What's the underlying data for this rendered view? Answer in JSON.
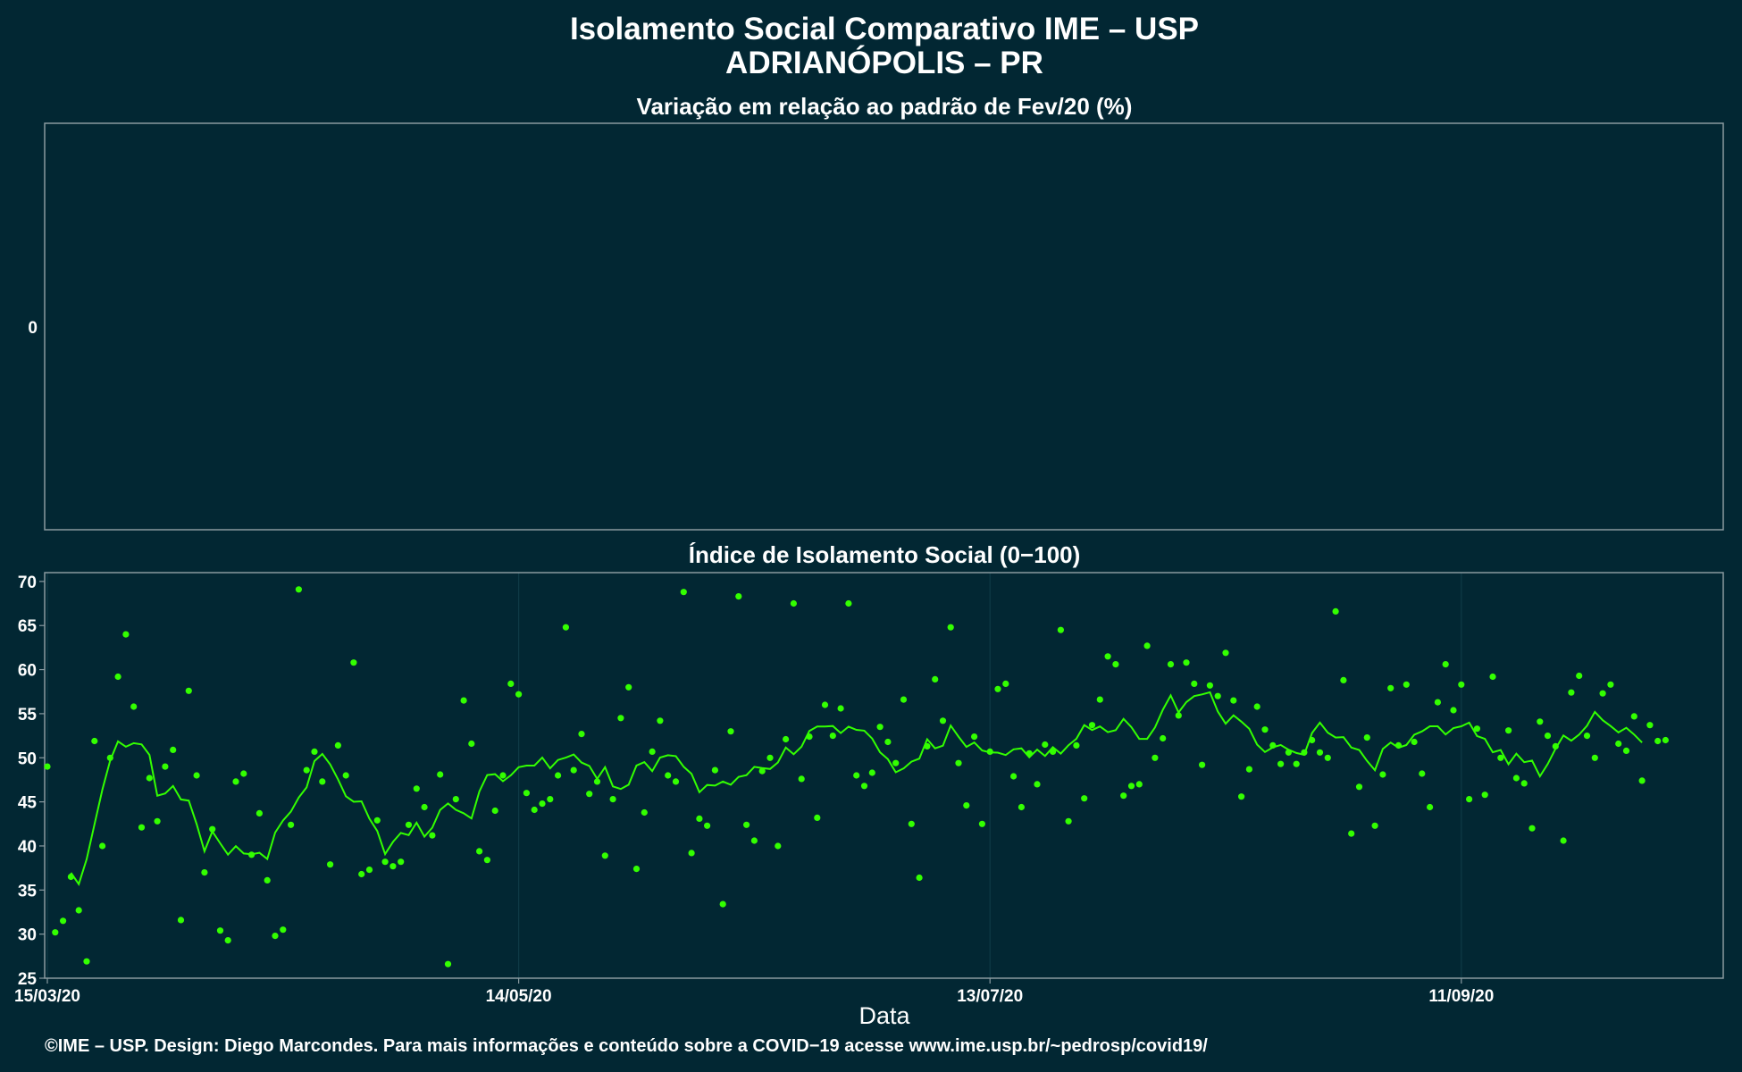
{
  "title": "Isolamento Social Comparativo IME – USP",
  "subtitle": "ADRIANÓPOLIS – PR",
  "footer": "©IME – USP. Design: Diego Marcondes. Para mais informações e conteúdo sobre a COVID−19 acesse www.ime.usp.br/~pedrosp/covid19/",
  "colors": {
    "background": "#022733",
    "series": "#33ff00",
    "panel_border": "#8a9aa0"
  },
  "chart_data": [
    {
      "type": "line",
      "title": "Variação em relação ao padrão de Fev/20 (%)",
      "ytick_labels": [
        "0"
      ],
      "series": []
    },
    {
      "type": "scatter",
      "title": "Índice de Isolamento Social (0−100)",
      "xlabel": "Data",
      "x_start": "15/03/20",
      "xlim": [
        "15/03/20",
        "14/10/20"
      ],
      "ylim": [
        25,
        71
      ],
      "yticks": [
        25,
        30,
        35,
        40,
        45,
        50,
        55,
        60,
        65,
        70
      ],
      "xtick_labels": [
        "15/03/20",
        "14/05/20",
        "13/07/20",
        "11/09/20"
      ],
      "grid": true,
      "values": [
        49.0,
        30.2,
        31.5,
        36.5,
        32.7,
        26.9,
        51.9,
        40.0,
        50.0,
        59.2,
        64.0,
        55.8,
        42.1,
        47.7,
        42.8,
        49.0,
        50.9,
        31.6,
        57.6,
        48.0,
        37.0,
        41.9,
        30.4,
        29.3,
        47.3,
        48.2,
        39.0,
        43.7,
        36.1,
        29.8,
        30.5,
        42.4,
        69.1,
        48.6,
        50.7,
        47.3,
        37.9,
        51.4,
        48.0,
        60.8,
        36.8,
        37.3,
        42.9,
        38.2,
        37.7,
        38.2,
        42.4,
        46.5,
        44.4,
        41.2,
        48.1,
        26.6,
        45.3,
        56.5,
        51.6,
        39.4,
        38.4,
        44.0,
        48.0,
        58.4,
        57.2,
        46.0,
        44.1,
        44.8,
        45.3,
        48.0,
        64.8,
        48.6,
        52.7,
        45.9,
        47.3,
        38.9,
        45.3,
        54.5,
        58.0,
        37.4,
        43.8,
        50.7,
        54.2,
        48.0,
        47.3,
        68.8,
        39.2,
        43.1,
        42.3,
        48.6,
        33.4,
        53.0,
        68.3,
        42.4,
        40.6,
        48.5,
        50.0,
        40.0,
        52.1,
        67.5,
        47.6,
        52.4,
        43.2,
        56.0,
        52.5,
        55.6,
        67.5,
        48.0,
        46.8,
        48.3,
        53.5,
        51.8,
        49.4,
        56.6,
        42.5,
        36.4,
        51.3,
        58.9,
        54.2,
        64.8,
        49.4,
        44.6,
        52.4,
        42.5,
        50.7,
        57.8,
        58.4,
        47.9,
        44.4,
        50.5,
        47.0,
        51.5,
        50.7,
        64.5,
        42.8,
        51.4,
        45.4,
        53.7,
        56.6,
        61.5,
        60.6,
        45.7,
        46.8,
        47.0,
        62.7,
        50.0,
        52.2,
        60.6,
        54.8,
        60.8,
        58.4,
        49.2,
        58.2,
        57.0,
        61.9,
        56.5,
        45.6,
        48.7,
        55.8,
        53.2,
        51.4,
        49.3,
        50.6,
        49.3,
        50.6,
        52.0,
        50.6,
        50.0,
        66.6,
        58.8,
        41.4,
        46.7,
        52.3,
        42.3,
        48.1,
        57.9,
        51.4,
        58.3,
        51.8,
        48.2,
        44.4,
        56.3,
        60.6,
        55.4,
        58.3,
        45.3,
        53.3,
        45.8,
        59.2,
        50.0,
        53.1,
        47.7,
        47.1,
        42.0,
        54.1,
        52.5,
        51.3,
        40.6,
        57.4,
        59.3,
        52.5,
        50.0,
        57.3,
        58.3,
        51.6,
        50.8,
        54.7,
        47.4,
        53.7,
        51.9,
        52.0
      ]
    }
  ]
}
